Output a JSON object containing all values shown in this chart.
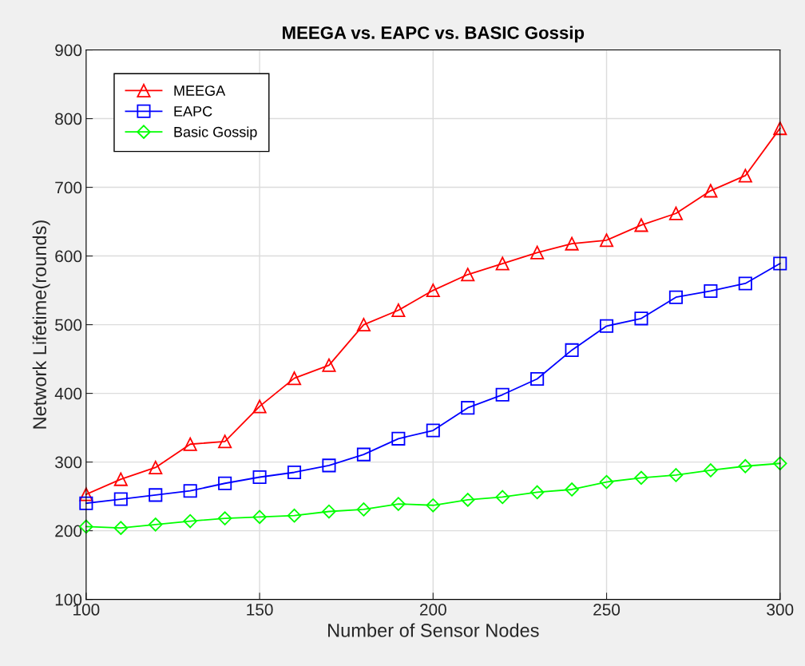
{
  "chart_data": {
    "type": "line",
    "title": "MEEGA vs. EAPC vs. BASIC Gossip",
    "xlabel": "Number of Sensor Nodes",
    "ylabel": "Network Lifetime(rounds)",
    "x": [
      100,
      110,
      120,
      130,
      140,
      150,
      160,
      170,
      180,
      190,
      200,
      210,
      220,
      230,
      240,
      250,
      260,
      270,
      280,
      290,
      300
    ],
    "series": [
      {
        "name": "MEEGA",
        "color": "#ff0000",
        "marker": "triangle",
        "values": [
          253,
          275,
          292,
          326,
          330,
          381,
          422,
          441,
          500,
          521,
          550,
          573,
          589,
          605,
          618,
          623,
          645,
          662,
          695,
          717,
          786
        ]
      },
      {
        "name": "EAPC",
        "color": "#0000ff",
        "marker": "square",
        "values": [
          240,
          246,
          252,
          258,
          269,
          278,
          285,
          295,
          311,
          334,
          346,
          379,
          398,
          421,
          463,
          498,
          509,
          540,
          549,
          560,
          589
        ]
      },
      {
        "name": "Basic Gossip",
        "color": "#00ff00",
        "marker": "diamond",
        "values": [
          206,
          204,
          209,
          214,
          218,
          220,
          222,
          228,
          231,
          239,
          237,
          245,
          249,
          256,
          260,
          271,
          277,
          281,
          288,
          294,
          298
        ]
      }
    ],
    "xlim": [
      100,
      300
    ],
    "xticks": [
      100,
      150,
      200,
      250,
      300
    ],
    "ylim": [
      100,
      900
    ],
    "yticks": [
      100,
      200,
      300,
      400,
      500,
      600,
      700,
      800,
      900
    ],
    "grid": true,
    "legend": "top left",
    "line_style": "solid"
  }
}
